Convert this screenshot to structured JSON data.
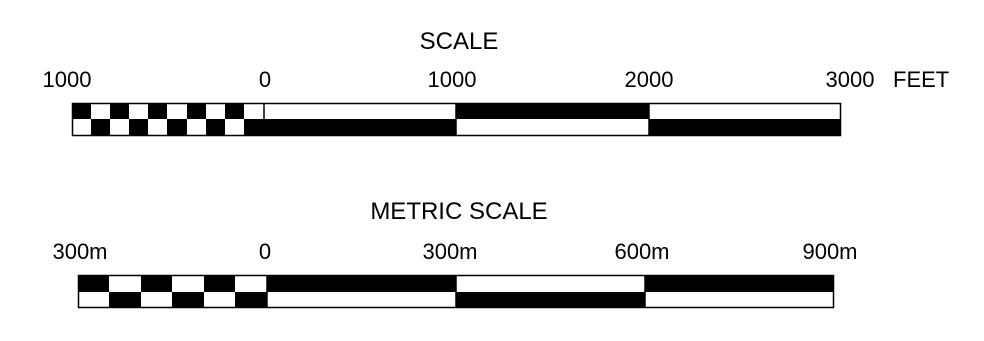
{
  "feet_scale": {
    "title": "SCALE",
    "tick_labels": [
      "1000",
      "0",
      "1000",
      "2000",
      "3000"
    ],
    "unit": "FEET"
  },
  "metric_scale": {
    "title": "METRIC SCALE",
    "tick_labels": [
      "300m",
      "0",
      "300m",
      "600m",
      "900m"
    ]
  },
  "colors": {
    "ink": "#000000",
    "paper": "#ffffff"
  }
}
